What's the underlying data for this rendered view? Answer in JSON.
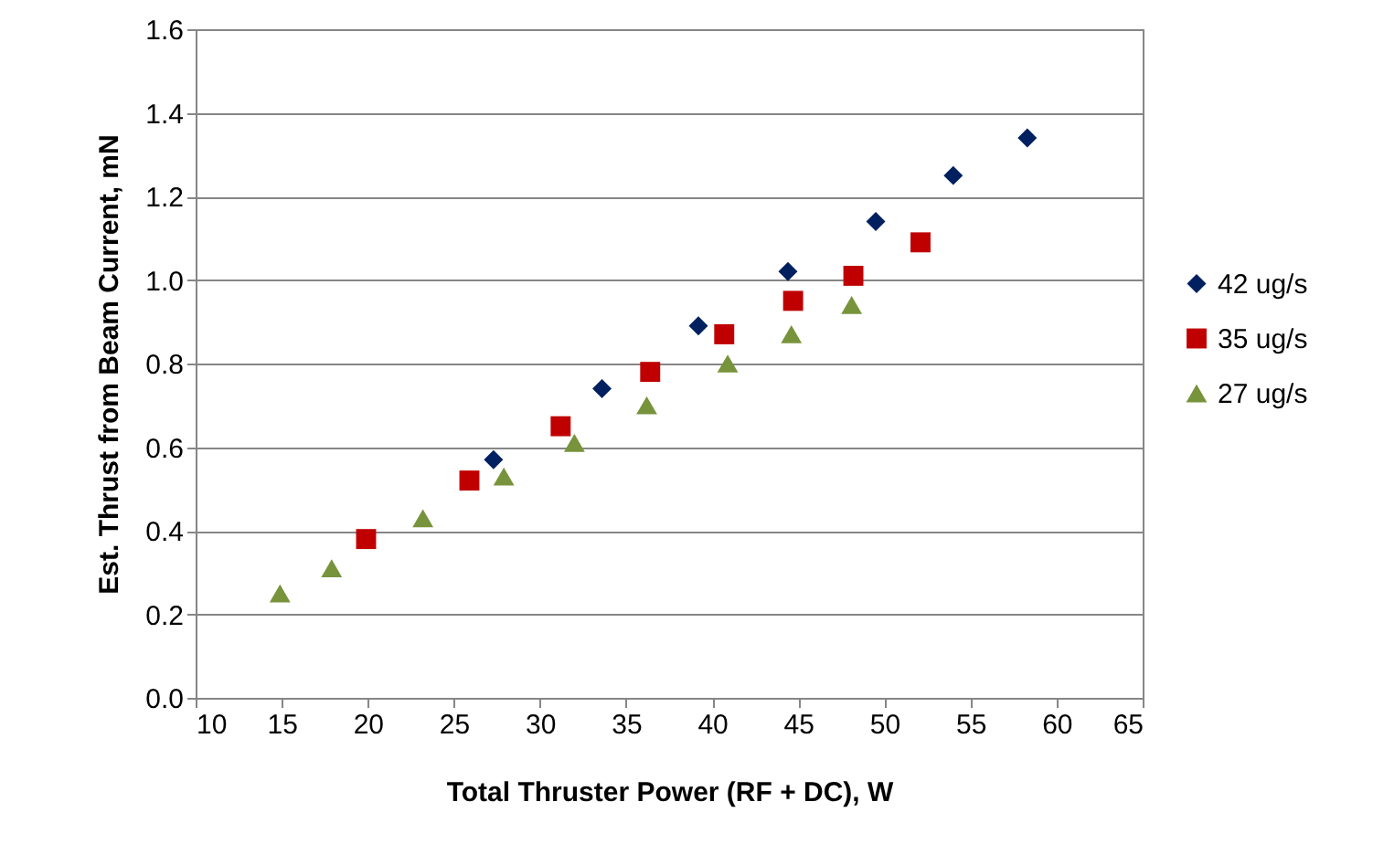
{
  "chart_data": {
    "type": "scatter",
    "xlabel": "Total Thruster Power (RF + DC),  W",
    "ylabel": "Est. Thrust from Beam Current, mN",
    "xlim": [
      10,
      65
    ],
    "xticks": [
      10,
      15,
      20,
      25,
      30,
      35,
      40,
      45,
      50,
      55,
      60,
      65
    ],
    "ylim": [
      0,
      1.6
    ],
    "yticks": [
      {
        "value": 0,
        "label": "0.0"
      },
      {
        "value": 0.2,
        "label": "0.2"
      },
      {
        "value": 0.4,
        "label": "0.4"
      },
      {
        "value": 0.6,
        "label": "0.6"
      },
      {
        "value": 0.8,
        "label": "0.8"
      },
      {
        "value": 1,
        "label": "1.0"
      },
      {
        "value": 1.2,
        "label": "1.2"
      },
      {
        "value": 1.4,
        "label": "1.4"
      },
      {
        "value": 1.6,
        "label": "1.6"
      }
    ],
    "grid": "y",
    "legend": "right",
    "series": [
      {
        "name": "42 ug/s",
        "color": "#002060",
        "marker": "diamond",
        "x": [
          27.3,
          33.6,
          39.2,
          44.4,
          49.5,
          54.0,
          58.3
        ],
        "values": [
          0.57,
          0.74,
          0.89,
          1.02,
          1.14,
          1.25,
          1.34
        ]
      },
      {
        "name": "35 ug/s",
        "color": "#c00000",
        "marker": "square",
        "x": [
          19.9,
          25.9,
          31.2,
          36.4,
          40.7,
          44.7,
          48.2,
          52.1
        ],
        "values": [
          0.38,
          0.52,
          0.65,
          0.78,
          0.87,
          0.95,
          1.01,
          1.09
        ]
      },
      {
        "name": "27 ug/s",
        "color": "#77933c",
        "marker": "triangle",
        "x": [
          14.9,
          17.9,
          23.2,
          27.9,
          32.0,
          36.2,
          40.9,
          44.6,
          48.1
        ],
        "values": [
          0.25,
          0.31,
          0.43,
          0.53,
          0.61,
          0.7,
          0.8,
          0.87,
          0.94
        ]
      }
    ]
  }
}
